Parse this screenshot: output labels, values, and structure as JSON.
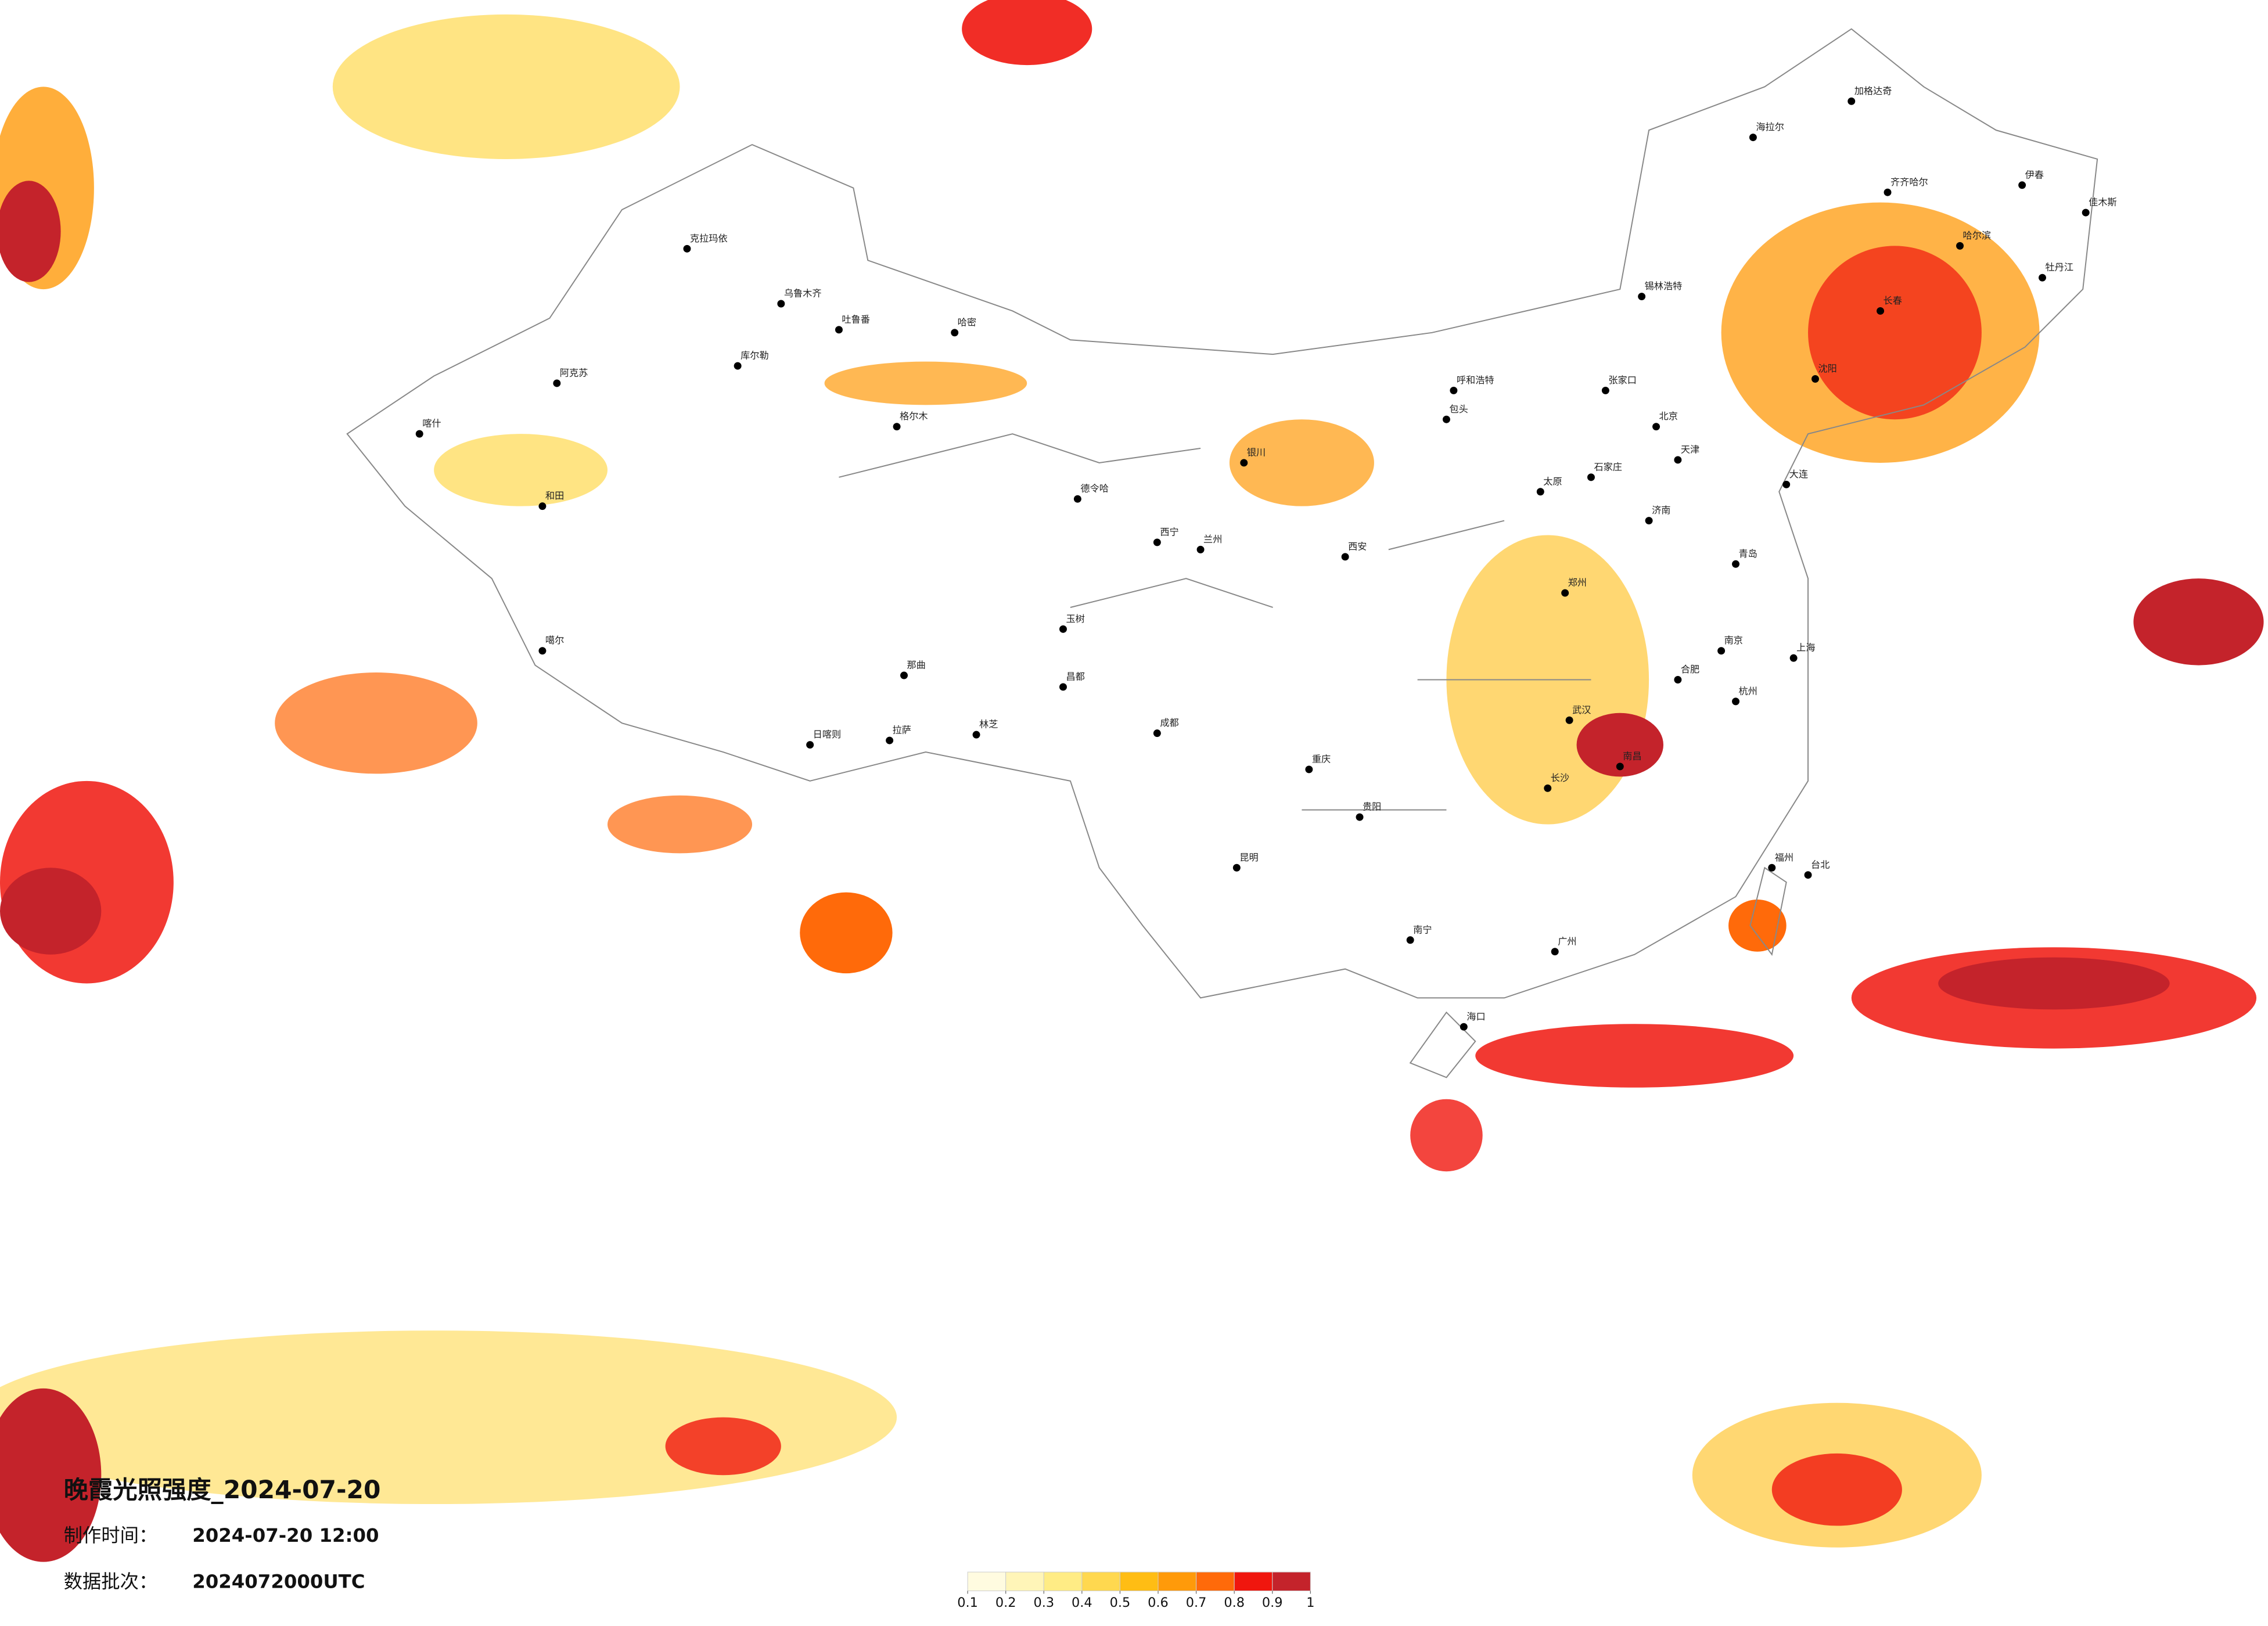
{
  "title": "晚霞光照强度_2024-07-20",
  "made_label": "制作时间：",
  "made_time": "2024-07-20 12:00",
  "batch_label": "数据批次：",
  "batch": "2024072000UTC",
  "legend": {
    "ticks": [
      0.1,
      0.2,
      0.3,
      0.4,
      0.5,
      0.6,
      0.7,
      0.8,
      0.9,
      1
    ],
    "colors": [
      "#fffbe0",
      "#fff5b8",
      "#ffec85",
      "#ffd84f",
      "#ffbd14",
      "#ff9a0a",
      "#ff6a0a",
      "#f0160e",
      "#c4232b"
    ]
  },
  "cities": [
    "加格达奇",
    "海拉尔",
    "齐齐哈尔",
    "伊春",
    "佳木斯",
    "哈尔滨",
    "牡丹江",
    "长春",
    "沈阳",
    "锡林浩特",
    "呼和浩特",
    "包头",
    "张家口",
    "北京",
    "天津",
    "石家庄",
    "太原",
    "济南",
    "大连",
    "青岛",
    "郑州",
    "西安",
    "银川",
    "兰州",
    "西宁",
    "德令哈",
    "格尔木",
    "哈密",
    "吐鲁番",
    "乌鲁木齐",
    "克拉玛依",
    "库尔勒",
    "阿克苏",
    "喀什",
    "和田",
    "噶尔",
    "那曲",
    "玉树",
    "昌都",
    "日喀则",
    "拉萨",
    "林芝",
    "成都",
    "重庆",
    "贵阳",
    "昆明",
    "南宁",
    "广州",
    "海口",
    "长沙",
    "武汉",
    "南昌",
    "合肥",
    "南京",
    "上海",
    "杭州",
    "福州",
    "台北"
  ]
}
